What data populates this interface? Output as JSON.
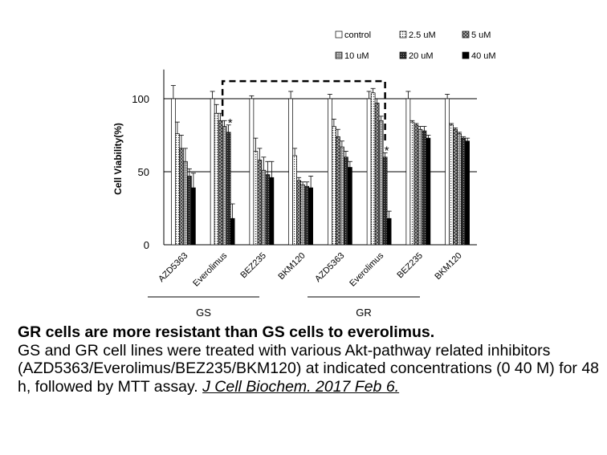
{
  "chart_data": {
    "type": "bar",
    "ylabel": "Cell Viability(%)",
    "ylim": [
      0,
      120
    ],
    "yticks": [
      0,
      50,
      100
    ],
    "grid": "horizontal lines at 50 and 100",
    "legend_position": "top-right",
    "categories": [
      "AZD5363",
      "Everolimus",
      "BEZ235",
      "BKM120",
      "AZD5363",
      "Everolimus",
      "BEZ235",
      "BKM120"
    ],
    "groups": [
      {
        "label": "GS",
        "categories": [
          "AZD5363",
          "Everolimus",
          "BEZ235",
          "BKM120"
        ]
      },
      {
        "label": "GR",
        "categories": [
          "AZD5363",
          "Everolimus",
          "BEZ235",
          "BKM120"
        ]
      }
    ],
    "series": [
      {
        "name": "control",
        "pattern": "white",
        "values": [
          100,
          100,
          100,
          100,
          100,
          100,
          100,
          100
        ],
        "errors": [
          9,
          5,
          2,
          5,
          3,
          5,
          5,
          3
        ]
      },
      {
        "name": "2.5 uM",
        "pattern": "dots",
        "values": [
          76,
          90,
          64,
          61,
          81,
          104,
          84,
          82
        ],
        "errors": [
          8,
          6,
          9,
          5,
          5,
          3,
          1,
          1
        ]
      },
      {
        "name": "5 uM",
        "pattern": "crosshatch",
        "values": [
          66,
          85,
          58,
          44,
          74,
          97,
          82,
          79
        ],
        "errors": [
          9,
          5,
          8,
          2,
          5,
          3,
          1,
          1
        ]
      },
      {
        "name": "10 uM",
        "pattern": "grid",
        "values": [
          57,
          81,
          51,
          41,
          67,
          85,
          79,
          76
        ],
        "errors": [
          9,
          4,
          9,
          2,
          4,
          3,
          2,
          1
        ]
      },
      {
        "name": "20 uM",
        "pattern": "dark",
        "values": [
          47,
          77,
          48,
          40,
          60,
          60,
          78,
          73
        ],
        "errors": [
          5,
          5,
          9,
          3,
          4,
          3,
          3,
          1
        ]
      },
      {
        "name": "40 uM",
        "pattern": "black",
        "values": [
          39,
          18,
          46,
          39,
          53,
          18,
          73,
          71
        ],
        "errors": [
          10,
          10,
          11,
          8,
          4,
          5,
          2,
          2
        ]
      }
    ],
    "annotations": [
      {
        "text": "*",
        "category_index": 1,
        "series": "20 uM"
      },
      {
        "text": "*",
        "category_index": 5,
        "series": "20 uM"
      }
    ],
    "comparison_bracket": {
      "from_category_index": 1,
      "to_category_index": 5,
      "style": "dashed"
    }
  },
  "caption": {
    "title": "GR cells are more resistant than GS cells to everolimus.",
    "body": "GS and GR cell lines were treated with various Akt-pathway related inhibitors (AZD5363/Everolimus/BEZ235/BKM120) at indicated concentrations (0 40  M) for 48 h, followed by MTT assay.",
    "citation": "J Cell Biochem. 2017 Feb 6."
  }
}
